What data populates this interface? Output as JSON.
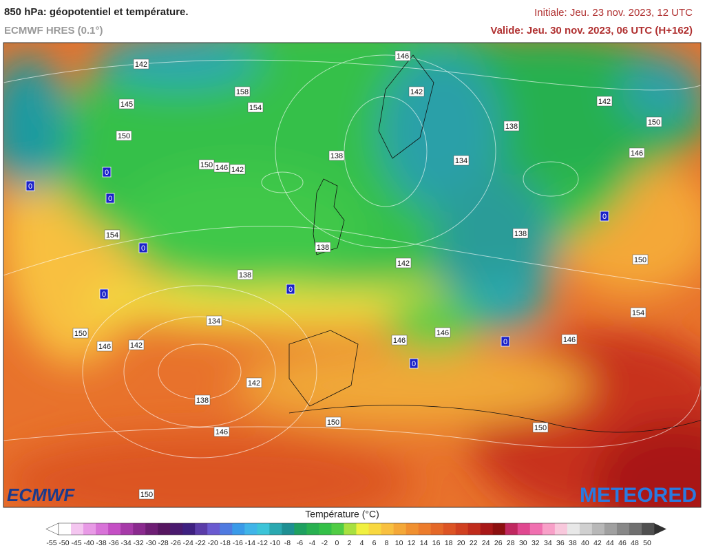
{
  "header": {
    "title": "850 hPa: géopotentiel et température.",
    "model": "ECMWF HRES (0.1°)",
    "initial": "Initiale: Jeu. 23 nov. 2023, 12 UTC",
    "valid": "Valide: Jeu. 30 nov. 2023, 06 UTC (H+162)"
  },
  "map": {
    "contour_labels": [
      "146",
      "142",
      "142",
      "150",
      "138",
      "146",
      "134",
      "138",
      "158",
      "154",
      "145",
      "142",
      "150",
      "150",
      "146",
      "142",
      "138",
      "142",
      "138",
      "150",
      "154",
      "146",
      "146",
      "146",
      "138",
      "134",
      "150",
      "146",
      "142",
      "142",
      "138",
      "146",
      "150",
      "150",
      "150",
      "154"
    ],
    "zero_labels": [
      "0",
      "0",
      "0",
      "0",
      "0",
      "0",
      "0",
      "0",
      "0"
    ],
    "logo_left": "ECMWF",
    "logo_right": "METEORED"
  },
  "colorbar": {
    "title": "Température (°C)",
    "ticks": [
      -55,
      -50,
      -45,
      -40,
      -38,
      -36,
      -34,
      -32,
      -30,
      -28,
      -26,
      -24,
      -22,
      -20,
      -18,
      -16,
      -14,
      -12,
      -10,
      -8,
      -6,
      -4,
      -2,
      0,
      2,
      4,
      6,
      8,
      10,
      12,
      14,
      16,
      18,
      20,
      22,
      24,
      26,
      28,
      30,
      32,
      34,
      36,
      38,
      40,
      42,
      44,
      46,
      48,
      50
    ],
    "colors": [
      "#ffffff",
      "#f4c6f0",
      "#e89ae6",
      "#d873d8",
      "#c44fc4",
      "#a63aa8",
      "#8a2a8e",
      "#6e1e74",
      "#561660",
      "#4a1a6e",
      "#3e2080",
      "#5a3ca8",
      "#6a5ad0",
      "#4f7ae0",
      "#3a9ae8",
      "#40b4e8",
      "#3cc4d8",
      "#2aa8b0",
      "#1e8f92",
      "#1ea060",
      "#28b050",
      "#34c048",
      "#50cc44",
      "#a8e040",
      "#f0f040",
      "#f8d840",
      "#f8c040",
      "#f4a838",
      "#f09030",
      "#ec7c2c",
      "#e46828",
      "#dc5424",
      "#d04020",
      "#c02c1c",
      "#a81818",
      "#8c1010",
      "#c02860",
      "#e04890",
      "#f070b0",
      "#f8a0c8",
      "#f8c8dc",
      "#e8e8e8",
      "#d0d0d0",
      "#b8b8b8",
      "#a0a0a0",
      "#888888",
      "#707070",
      "#505050"
    ]
  }
}
